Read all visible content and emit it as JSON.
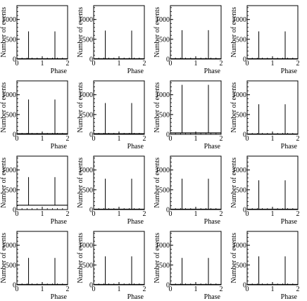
{
  "axis_labels": {
    "xlabel": "Phase",
    "ylabel": "Number of events"
  },
  "chart_data": [
    {
      "type": "bar",
      "panel": 1,
      "x_ticks": [
        0,
        1,
        2
      ],
      "y_ticks": [
        0,
        500,
        1000
      ],
      "xlim": [
        0,
        2
      ],
      "ylim": [
        0,
        1350
      ],
      "peaks": [
        {
          "x": 0.46,
          "y": 700
        },
        {
          "x": 1.5,
          "y": 700
        }
      ],
      "baseline": 10
    },
    {
      "type": "bar",
      "panel": 2,
      "x_ticks": [
        0,
        1,
        2
      ],
      "y_ticks": [
        0,
        500,
        1000
      ],
      "xlim": [
        0,
        2
      ],
      "ylim": [
        0,
        1350
      ],
      "peaks": [
        {
          "x": 0.46,
          "y": 720
        },
        {
          "x": 1.5,
          "y": 720
        }
      ],
      "baseline": 10
    },
    {
      "type": "bar",
      "panel": 3,
      "x_ticks": [
        0,
        1,
        2
      ],
      "y_ticks": [
        0,
        500,
        1000
      ],
      "xlim": [
        0,
        2
      ],
      "ylim": [
        0,
        1350
      ],
      "peaks": [
        {
          "x": 0.46,
          "y": 730
        },
        {
          "x": 1.5,
          "y": 730
        }
      ],
      "baseline": 10
    },
    {
      "type": "bar",
      "panel": 4,
      "x_ticks": [
        0,
        1,
        2
      ],
      "y_ticks": [
        0,
        500,
        1000
      ],
      "xlim": [
        0,
        2
      ],
      "ylim": [
        0,
        1350
      ],
      "peaks": [
        {
          "x": 0.46,
          "y": 700
        },
        {
          "x": 1.5,
          "y": 700
        }
      ],
      "baseline": 10
    },
    {
      "type": "bar",
      "panel": 5,
      "x_ticks": [
        0,
        1,
        2
      ],
      "y_ticks": [
        0,
        500,
        1000
      ],
      "xlim": [
        0,
        2
      ],
      "ylim": [
        0,
        1350
      ],
      "peaks": [
        {
          "x": 0.46,
          "y": 880
        },
        {
          "x": 1.5,
          "y": 880
        }
      ],
      "baseline": 15
    },
    {
      "type": "bar",
      "panel": 6,
      "x_ticks": [
        0,
        1,
        2
      ],
      "y_ticks": [
        0,
        500,
        1000
      ],
      "xlim": [
        0,
        2
      ],
      "ylim": [
        0,
        1350
      ],
      "peaks": [
        {
          "x": 0.46,
          "y": 790
        },
        {
          "x": 1.5,
          "y": 790
        }
      ],
      "baseline": 15
    },
    {
      "type": "bar",
      "panel": 7,
      "x_ticks": [
        0,
        1,
        2
      ],
      "y_ticks": [
        0,
        500,
        1000
      ],
      "xlim": [
        0,
        2
      ],
      "ylim": [
        0,
        1350
      ],
      "peaks": [
        {
          "x": 0.46,
          "y": 1250
        },
        {
          "x": 1.5,
          "y": 1250
        }
      ],
      "baseline": 35
    },
    {
      "type": "bar",
      "panel": 8,
      "x_ticks": [
        0,
        1,
        2
      ],
      "y_ticks": [
        0,
        500,
        1000
      ],
      "xlim": [
        0,
        2
      ],
      "ylim": [
        0,
        1350
      ],
      "peaks": [
        {
          "x": 0.46,
          "y": 760
        },
        {
          "x": 1.5,
          "y": 760
        }
      ],
      "baseline": 10
    },
    {
      "type": "bar",
      "panel": 9,
      "x_ticks": [
        0,
        1,
        2
      ],
      "y_ticks": [
        0,
        500,
        1000
      ],
      "xlim": [
        0,
        2
      ],
      "ylim": [
        0,
        1350
      ],
      "peaks": [
        {
          "x": 0.46,
          "y": 820
        },
        {
          "x": 1.5,
          "y": 820
        }
      ],
      "baseline": 110
    },
    {
      "type": "bar",
      "panel": 10,
      "x_ticks": [
        0,
        1,
        2
      ],
      "y_ticks": [
        0,
        500,
        1000
      ],
      "xlim": [
        0,
        2
      ],
      "ylim": [
        0,
        1350
      ],
      "peaks": [
        {
          "x": 0.46,
          "y": 780
        },
        {
          "x": 1.5,
          "y": 780
        }
      ],
      "baseline": 10
    },
    {
      "type": "bar",
      "panel": 11,
      "x_ticks": [
        0,
        1,
        2
      ],
      "y_ticks": [
        0,
        500,
        1000
      ],
      "xlim": [
        0,
        2
      ],
      "ylim": [
        0,
        1350
      ],
      "peaks": [
        {
          "x": 0.46,
          "y": 780
        },
        {
          "x": 1.5,
          "y": 780
        }
      ],
      "baseline": 10
    },
    {
      "type": "bar",
      "panel": 12,
      "x_ticks": [
        0,
        1,
        2
      ],
      "y_ticks": [
        0,
        500,
        1000
      ],
      "xlim": [
        0,
        2
      ],
      "ylim": [
        0,
        1350
      ],
      "peaks": [
        {
          "x": 0.46,
          "y": 740
        },
        {
          "x": 1.5,
          "y": 740
        }
      ],
      "baseline": 10
    },
    {
      "type": "bar",
      "panel": 13,
      "x_ticks": [
        0,
        1,
        2
      ],
      "y_ticks": [
        0,
        500,
        1000
      ],
      "xlim": [
        0,
        2
      ],
      "ylim": [
        0,
        1350
      ],
      "peaks": [
        {
          "x": 0.46,
          "y": 680
        },
        {
          "x": 1.5,
          "y": 680
        }
      ],
      "baseline": 10
    },
    {
      "type": "bar",
      "panel": 14,
      "x_ticks": [
        0,
        1,
        2
      ],
      "y_ticks": [
        0,
        500,
        1000
      ],
      "xlim": [
        0,
        2
      ],
      "ylim": [
        0,
        1350
      ],
      "peaks": [
        {
          "x": 0.46,
          "y": 720
        },
        {
          "x": 1.5,
          "y": 720
        }
      ],
      "baseline": 10
    },
    {
      "type": "bar",
      "panel": 15,
      "x_ticks": [
        0,
        1,
        2
      ],
      "y_ticks": [
        0,
        500,
        1000
      ],
      "xlim": [
        0,
        2
      ],
      "ylim": [
        0,
        1350
      ],
      "peaks": [
        {
          "x": 0.46,
          "y": 680
        },
        {
          "x": 1.5,
          "y": 680
        }
      ],
      "baseline": 10
    },
    {
      "type": "bar",
      "panel": 16,
      "x_ticks": [
        0,
        1,
        2
      ],
      "y_ticks": [
        0,
        500,
        1000
      ],
      "xlim": [
        0,
        2
      ],
      "ylim": [
        0,
        1350
      ],
      "peaks": [
        {
          "x": 0.46,
          "y": 720
        },
        {
          "x": 1.5,
          "y": 720
        }
      ],
      "baseline": 10
    }
  ]
}
